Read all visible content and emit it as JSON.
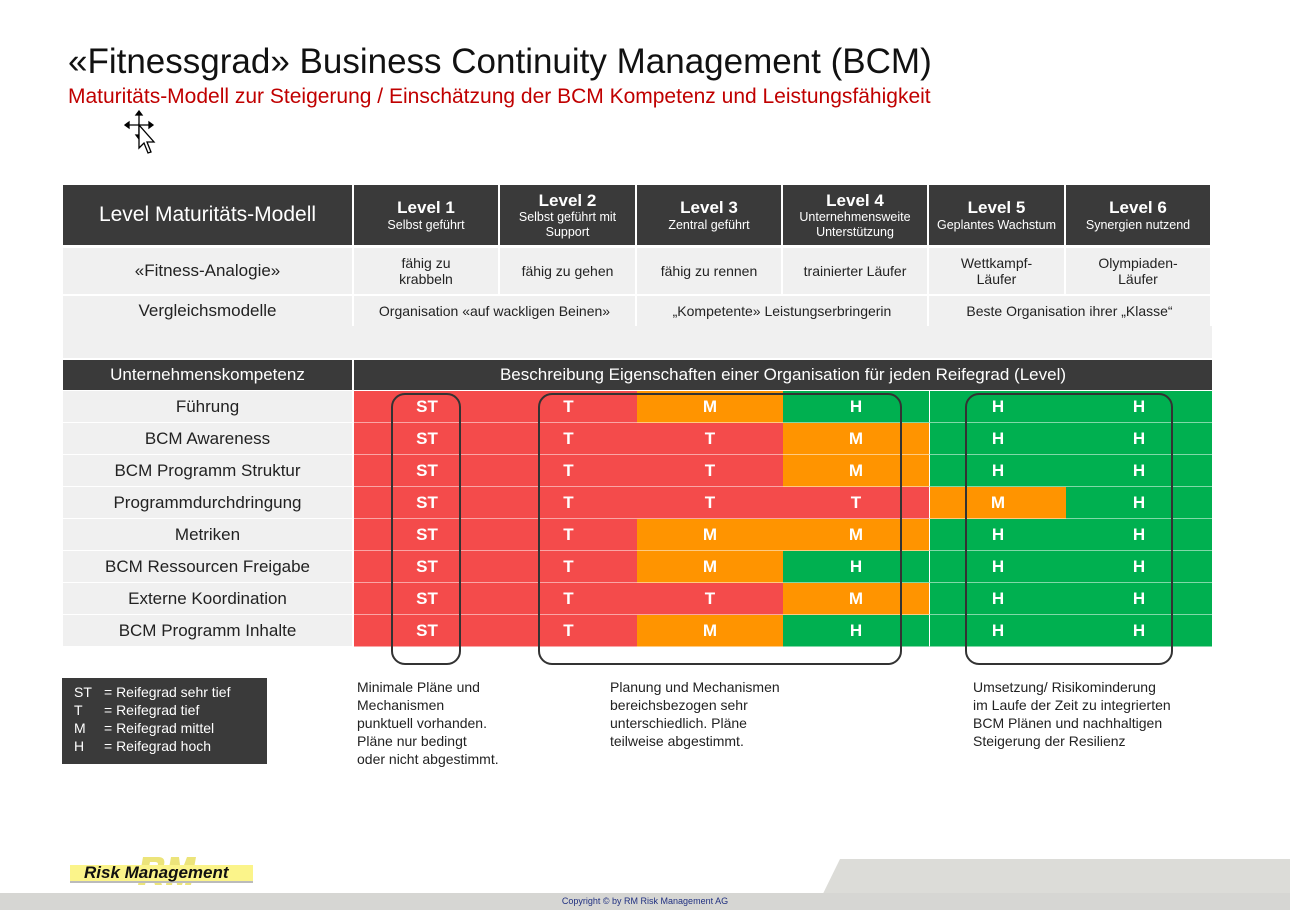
{
  "title": "«Fitnessgrad» Business Continuity Management (BCM)",
  "subtitle": "Maturitäts-Modell zur Steigerung / Einschätzung der BCM Kompetenz und Leistungsfähigkeit",
  "header": {
    "label": "Level Maturitäts-Modell",
    "levels": [
      {
        "name": "Level 1",
        "sub": "Selbst geführt"
      },
      {
        "name": "Level 2",
        "sub": "Selbst geführt mit Support"
      },
      {
        "name": "Level 3",
        "sub": "Zentral geführt"
      },
      {
        "name": "Level 4",
        "sub": "Unternehmensweite Unterstützung"
      },
      {
        "name": "Level 5",
        "sub": "Geplantes Wachstum"
      },
      {
        "name": "Level 6",
        "sub": "Synergien nutzend"
      }
    ]
  },
  "fitness": {
    "label": "«Fitness-Analogie»",
    "values": [
      "fähig zu krabbeln",
      "fähig zu gehen",
      "fähig zu rennen",
      "trainierter Läufer",
      "Wettkampf-Läufer",
      "Olympiaden-Läufer"
    ]
  },
  "vergleich": {
    "label": "Vergleichsmodelle",
    "values": [
      "Organisation «auf wackligen Beinen»",
      "„Kompetente» Leistungserbringerin",
      "Beste Organisation ihrer „Klasse“"
    ]
  },
  "section": {
    "left": "Unternehmenskompetenz",
    "right": "Beschreibung Eigenschaften einer Organisation für jeden Reifegrad (Level)"
  },
  "rows": [
    {
      "label": "Führung",
      "values": [
        "ST",
        "T",
        "M",
        "H",
        "H",
        "H"
      ]
    },
    {
      "label": "BCM Awareness",
      "values": [
        "ST",
        "T",
        "T",
        "M",
        "H",
        "H"
      ]
    },
    {
      "label": "BCM Programm Struktur",
      "values": [
        "ST",
        "T",
        "T",
        "M",
        "H",
        "H"
      ]
    },
    {
      "label": "Programmdurchdringung",
      "values": [
        "ST",
        "T",
        "T",
        "T",
        "M",
        "H"
      ]
    },
    {
      "label": "Metriken",
      "values": [
        "ST",
        "T",
        "M",
        "M",
        "H",
        "H"
      ]
    },
    {
      "label": "BCM Ressourcen Freigabe",
      "values": [
        "ST",
        "T",
        "M",
        "H",
        "H",
        "H"
      ]
    },
    {
      "label": "Externe Koordination",
      "values": [
        "ST",
        "T",
        "T",
        "M",
        "H",
        "H"
      ]
    },
    {
      "label": "BCM Programm Inhalte",
      "values": [
        "ST",
        "T",
        "M",
        "H",
        "H",
        "H"
      ]
    }
  ],
  "colors": {
    "ST": "#f44b4b",
    "T": "#f44b4b",
    "M": "#ff9400",
    "H": "#00b050"
  },
  "legend": [
    {
      "key": "ST",
      "text": "= Reifegrad sehr tief"
    },
    {
      "key": "T",
      "text": "= Reifegrad tief"
    },
    {
      "key": "M",
      "text": "= Reifegrad mittel"
    },
    {
      "key": "H",
      "text": "= Reifegrad hoch"
    }
  ],
  "descriptions": [
    "Minimale Pläne und\nMechanismen\npunktuell vorhanden.\nPläne nur bedingt\noder nicht abgestimmt.",
    "Planung und Mechanismen\nbereichsbezogen sehr\nunterschiedlich. Pläne\nteilweise abgestimmt.",
    "Umsetzung/ Risikominderung\nim Laufe der Zeit zu integrierten\nBCM Plänen und nachhaltigen\nSteigerung der Resilienz"
  ],
  "logo": "Risk Management",
  "copyright": "Copyright ©  by RM Risk Management AG",
  "icons": {
    "cursor": "move-cursor-icon"
  }
}
